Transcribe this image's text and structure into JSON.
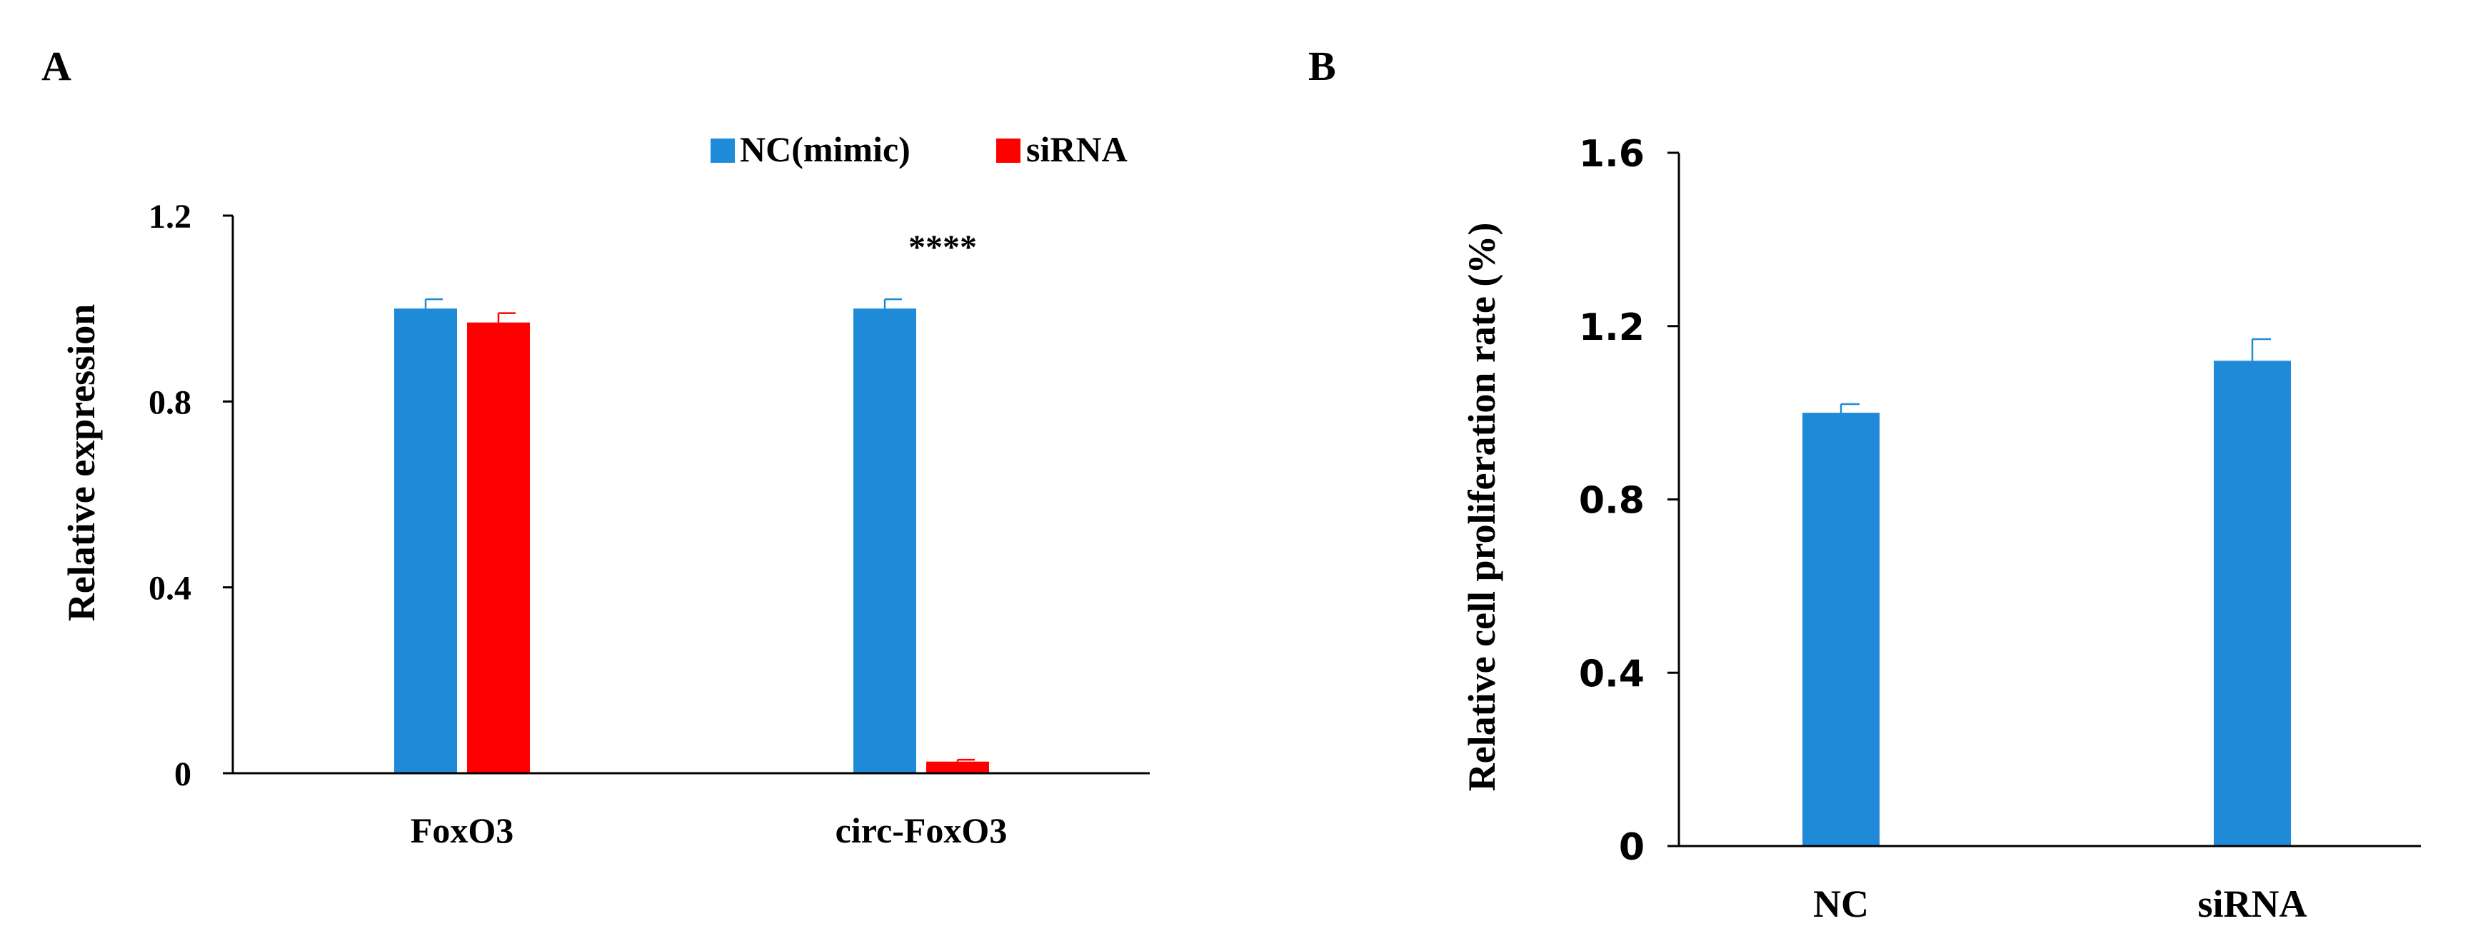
{
  "colors": {
    "nc": "#1f8bd8",
    "sirna": "#ff0000",
    "axis": "#000000"
  },
  "chart_data": [
    {
      "panel": "A",
      "type": "bar",
      "categories": [
        "FoxO3",
        "circ-FoxO3"
      ],
      "series": [
        {
          "name": "NC(mimic)",
          "color": "#1f8bd8",
          "values": [
            1.0,
            1.0
          ],
          "errors": [
            0.02,
            0.02
          ]
        },
        {
          "name": "siRNA",
          "color": "#ff0000",
          "values": [
            0.97,
            0.025
          ],
          "errors": [
            0.02,
            0.004
          ]
        }
      ],
      "ylabel": "Relative expression",
      "xlabel": "",
      "ylim": [
        0,
        1.2
      ],
      "yticks": [
        "0",
        "0.4",
        "0.8",
        "1.2"
      ],
      "annotation": "****",
      "legend": "top-right",
      "grid": false
    },
    {
      "panel": "B",
      "type": "bar",
      "categories": [
        "NC",
        "siRNA"
      ],
      "values": [
        1.0,
        1.12
      ],
      "errors": [
        0.02,
        0.05
      ],
      "color": "#1f8bd8",
      "ylabel": "Relative cell proliferation rate (%)",
      "xlabel": "",
      "ylim": [
        0,
        1.6
      ],
      "yticks": [
        "0",
        "0.4",
        "0.8",
        "1.2",
        "1.6"
      ],
      "grid": false
    }
  ]
}
